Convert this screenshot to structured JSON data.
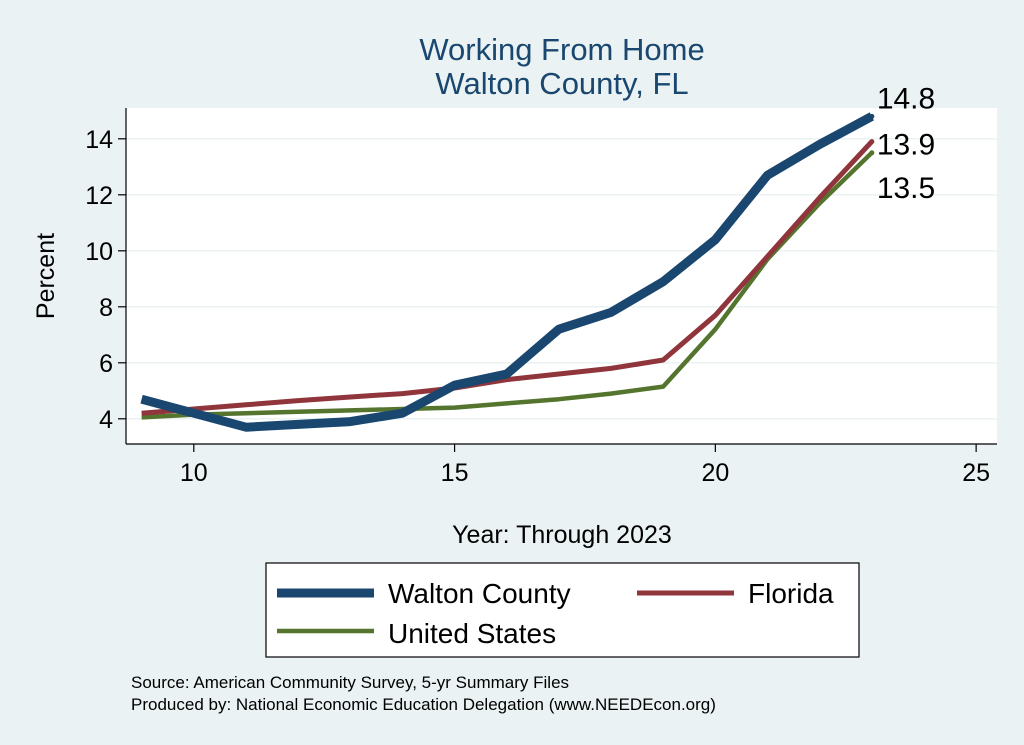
{
  "chart_data": {
    "type": "line",
    "title": [
      "Working From Home",
      "Walton County, FL"
    ],
    "xlabel": "Year: Through 2023",
    "ylabel": "Percent",
    "xlim": [
      8.7,
      25.4
    ],
    "ylim": [
      3.1,
      15.1
    ],
    "xticks": [
      10,
      15,
      20,
      25
    ],
    "yticks": [
      4,
      6,
      8,
      10,
      12,
      14
    ],
    "grid": true,
    "x": [
      9,
      10,
      11,
      12,
      13,
      14,
      15,
      16,
      17,
      18,
      19,
      20,
      21,
      22,
      23
    ],
    "series": [
      {
        "name": "Walton County",
        "color": "#1a476f",
        "values": [
          4.7,
          4.2,
          3.7,
          3.8,
          3.9,
          4.2,
          5.2,
          5.6,
          7.2,
          7.8,
          8.9,
          10.4,
          12.7,
          13.8,
          14.8
        ],
        "end_label": "14.8"
      },
      {
        "name": "Florida",
        "color": "#90353b",
        "values": [
          4.2,
          4.35,
          4.5,
          4.65,
          4.78,
          4.9,
          5.1,
          5.4,
          5.6,
          5.8,
          6.1,
          7.7,
          9.8,
          11.9,
          13.9
        ],
        "end_label": "13.9"
      },
      {
        "name": "United States",
        "color": "#55752f",
        "values": [
          4.05,
          4.15,
          4.2,
          4.25,
          4.3,
          4.35,
          4.4,
          4.55,
          4.7,
          4.9,
          5.15,
          7.2,
          9.7,
          11.7,
          13.5
        ],
        "end_label": "13.5"
      }
    ],
    "legend": {
      "placement": "bottom",
      "columns": 2
    },
    "notes": [
      "Source: American Community Survey, 5-yr Summary Files",
      "Produced by: National Economic Education Delegation (www.NEEDEcon.org)"
    ]
  }
}
